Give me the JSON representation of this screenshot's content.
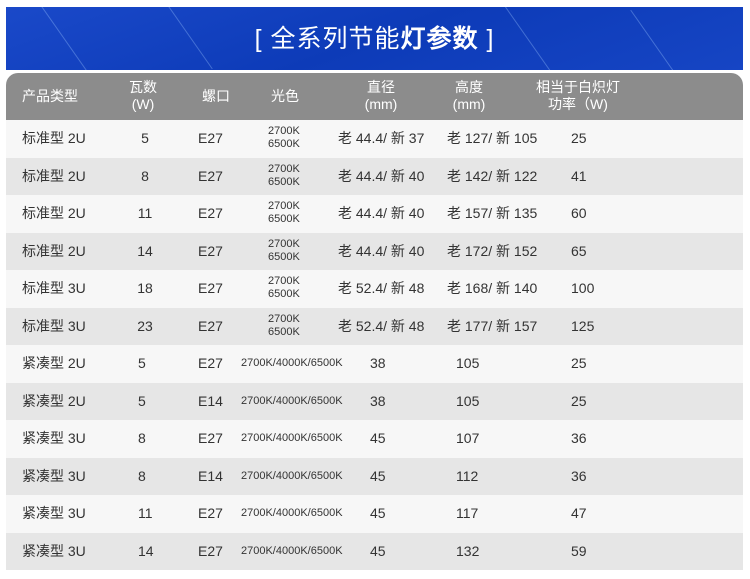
{
  "banner": {
    "title_prefix": "[ 全系列节能",
    "title_bold": "灯参数",
    "title_suffix": " ]",
    "color": "#1445c4"
  },
  "table": {
    "headers": {
      "type": "产品类型",
      "watts": "瓦数",
      "watts_unit": "(W)",
      "socket": "螺口",
      "color": "光色",
      "diameter": "直径",
      "diameter_unit": "(mm)",
      "height": "高度",
      "height_unit": "(mm)",
      "equiv": "相当于白炽灯",
      "equiv_unit": "功率（W)"
    },
    "rows": [
      {
        "type": "标准型 2U",
        "watts": "5",
        "socket": "E27",
        "color1": "2700K",
        "color2": "6500K",
        "diameter": "老 44.4/ 新 37",
        "height": "老 127/ 新 105",
        "equiv": "25"
      },
      {
        "type": "标准型 2U",
        "watts": "8",
        "socket": "E27",
        "color1": "2700K",
        "color2": "6500K",
        "diameter": "老 44.4/ 新 40",
        "height": "老 142/ 新 122",
        "equiv": "41"
      },
      {
        "type": "标准型 2U",
        "watts": "11",
        "socket": "E27",
        "color1": "2700K",
        "color2": "6500K",
        "diameter": "老 44.4/ 新 40",
        "height": "老 157/ 新 135",
        "equiv": "60"
      },
      {
        "type": "标准型 2U",
        "watts": "14",
        "socket": "E27",
        "color1": "2700K",
        "color2": "6500K",
        "diameter": "老 44.4/ 新 40",
        "height": "老 172/ 新 152",
        "equiv": "65"
      },
      {
        "type": "标准型 3U",
        "watts": "18",
        "socket": "E27",
        "color1": "2700K",
        "color2": "6500K",
        "diameter": "老 52.4/ 新 48",
        "height": "老 168/ 新 140",
        "equiv": "100"
      },
      {
        "type": "标准型 3U",
        "watts": "23",
        "socket": "E27",
        "color1": "2700K",
        "color2": "6500K",
        "diameter": "老 52.4/ 新 48",
        "height": "老 177/ 新 157",
        "equiv": "125"
      }
    ],
    "compact_rows": [
      {
        "type": "紧凑型 2U",
        "watts": "5",
        "socket": "E27",
        "color": "2700K/4000K/6500K",
        "diameter": "38",
        "height": "105",
        "equiv": "25"
      },
      {
        "type": "紧凑型 2U",
        "watts": "5",
        "socket": "E14",
        "color": "2700K/4000K/6500K",
        "diameter": "38",
        "height": "105",
        "equiv": "25"
      },
      {
        "type": "紧凑型 3U",
        "watts": "8",
        "socket": "E27",
        "color": "2700K/4000K/6500K",
        "diameter": "45",
        "height": "107",
        "equiv": "36"
      },
      {
        "type": "紧凑型 3U",
        "watts": "8",
        "socket": "E14",
        "color": "2700K/4000K/6500K",
        "diameter": "45",
        "height": "112",
        "equiv": "36"
      },
      {
        "type": "紧凑型 3U",
        "watts": "11",
        "socket": "E27",
        "color": "2700K/4000K/6500K",
        "diameter": "45",
        "height": "117",
        "equiv": "47"
      },
      {
        "type": "紧凑型 3U",
        "watts": "14",
        "socket": "E27",
        "color": "2700K/4000K/6500K",
        "diameter": "45",
        "height": "132",
        "equiv": "59"
      }
    ]
  }
}
